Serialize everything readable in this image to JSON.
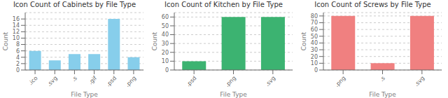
{
  "chart_data": [
    {
      "type": "bar",
      "title": "Icon Count of Cabinets by File Type",
      "categories": [
        ".ico",
        ".svg",
        ".s",
        ".gif",
        ".psd",
        ".png"
      ],
      "values": [
        6,
        3,
        5,
        5,
        16,
        4
      ],
      "color": "#87CEEB",
      "ylabel": "Count",
      "xlabel": "File Type",
      "ylim": [
        0,
        18
      ],
      "yticks": [
        0,
        2,
        4,
        6,
        8,
        10,
        12,
        14,
        16
      ],
      "grid": true
    },
    {
      "type": "bar",
      "title": "Icon Count of Kitchen by File Type",
      "categories": [
        ".psd",
        ".png",
        ".svg"
      ],
      "values": [
        10,
        60,
        60
      ],
      "color": "#3CB371",
      "ylabel": "Count",
      "xlabel": "File Type",
      "ylim": [
        0,
        65
      ],
      "yticks": [
        0,
        10,
        20,
        30,
        40,
        50,
        60
      ],
      "grid": true
    },
    {
      "type": "bar",
      "title": "Icon Count of Screws by File Type",
      "categories": [
        ".png",
        ".s",
        ".svg"
      ],
      "values": [
        80,
        10,
        80
      ],
      "color": "#F08080",
      "ylabel": "Count",
      "xlabel": "File Type",
      "ylim": [
        0,
        85
      ],
      "yticks": [
        0,
        10,
        20,
        30,
        40,
        50,
        60,
        70,
        80
      ],
      "grid": true
    }
  ]
}
